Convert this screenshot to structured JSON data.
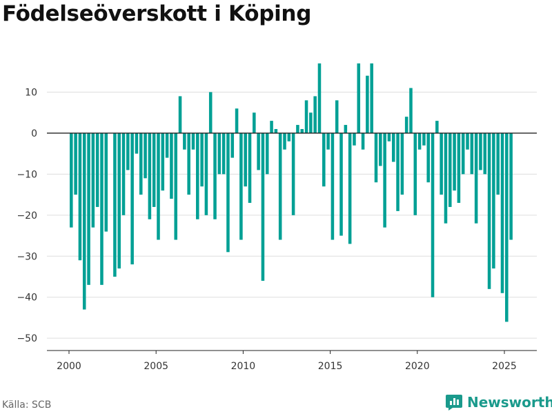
{
  "title": "Födelseöverskott i Köping",
  "source": "Källa: SCB",
  "brand": "Newsworthy",
  "colors": {
    "bar": "#00A095",
    "brand": "#1a9a8c"
  },
  "chart_data": {
    "type": "bar",
    "title": "Födelseöverskott i Köping",
    "xlabel": "",
    "ylabel": "",
    "x_ticks": [
      "2000",
      "2005",
      "2010",
      "2015",
      "2020",
      "2025"
    ],
    "y_ticks": [
      "10",
      "0",
      "−10",
      "−20",
      "−30",
      "−40",
      "−50"
    ],
    "ylim": [
      -53,
      19
    ],
    "grid": true,
    "series": [
      {
        "values": [
          -23,
          -15,
          -31,
          -43,
          -37,
          -23,
          -18,
          -37,
          -24,
          0,
          -35,
          -33,
          -20,
          -9,
          -32,
          -5,
          -15,
          -11,
          -21,
          -18,
          -26,
          -14,
          -6,
          -16,
          -26,
          9,
          -4,
          -15,
          -4,
          -21,
          -13,
          -20,
          10,
          -21,
          -10,
          -10,
          -29,
          -6,
          6,
          -26,
          -13,
          -17,
          5,
          -9,
          -36,
          -10,
          3,
          1,
          -26,
          -4,
          -2,
          -20,
          2,
          1,
          8,
          5,
          9,
          17,
          -13,
          -4,
          -26,
          8,
          -25,
          2,
          -27,
          -3,
          17,
          -4,
          14,
          17,
          -12,
          -8,
          -23,
          -2,
          -7,
          -19,
          -15,
          4,
          11,
          -20,
          -4,
          -3,
          -12,
          -40,
          3,
          -15,
          -22,
          -18,
          -14,
          -17,
          -10,
          -4,
          -10,
          -22,
          -9,
          -10,
          -38,
          -33,
          -15,
          -39,
          -46,
          -26
        ]
      }
    ]
  }
}
